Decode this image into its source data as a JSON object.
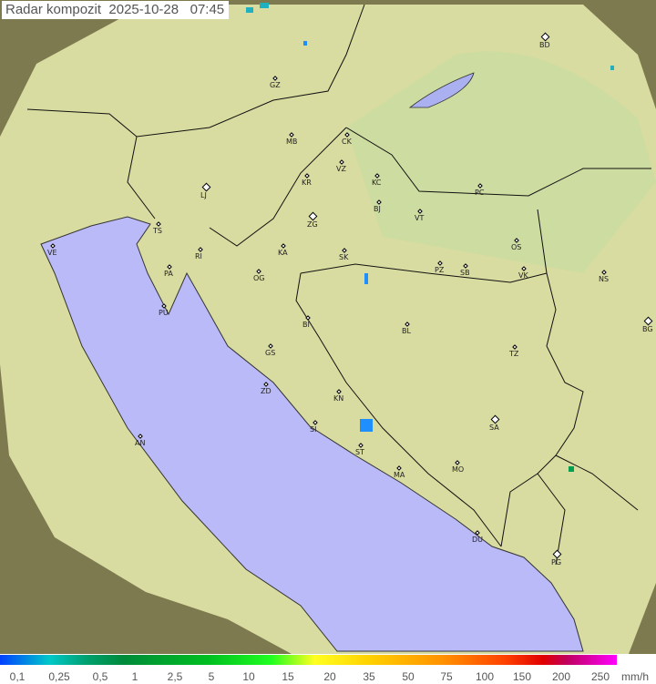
{
  "title": "Radar kompozit  2025-10-28   07:45",
  "cities": [
    "BD",
    "GZ",
    "MB",
    "CK",
    "VZ",
    "KR",
    "KC",
    "PC",
    "LJ",
    "ZG",
    "BJ",
    "VT",
    "TS",
    "VE",
    "RI",
    "KA",
    "SK",
    "OS",
    "PA",
    "OG",
    "PZ",
    "SB",
    "VK",
    "NS",
    "PU",
    "BI",
    "BL",
    "BG",
    "GS",
    "TZ",
    "ZD",
    "KN",
    "SA",
    "SI",
    "AN",
    "ST",
    "MA",
    "MO",
    "DU",
    "PG"
  ],
  "legend": {
    "ticks": [
      "0,1",
      "0,25",
      "0,5",
      "1",
      "2,5",
      "5",
      "10",
      "15",
      "20",
      "35",
      "50",
      "75",
      "100",
      "150",
      "200",
      "250"
    ],
    "unit": "mm/h"
  },
  "colors": {
    "sea": "#babaf8",
    "land": "#d8e0a0",
    "outside": "#8a8a60",
    "radar_echo": "#1f8fff"
  }
}
